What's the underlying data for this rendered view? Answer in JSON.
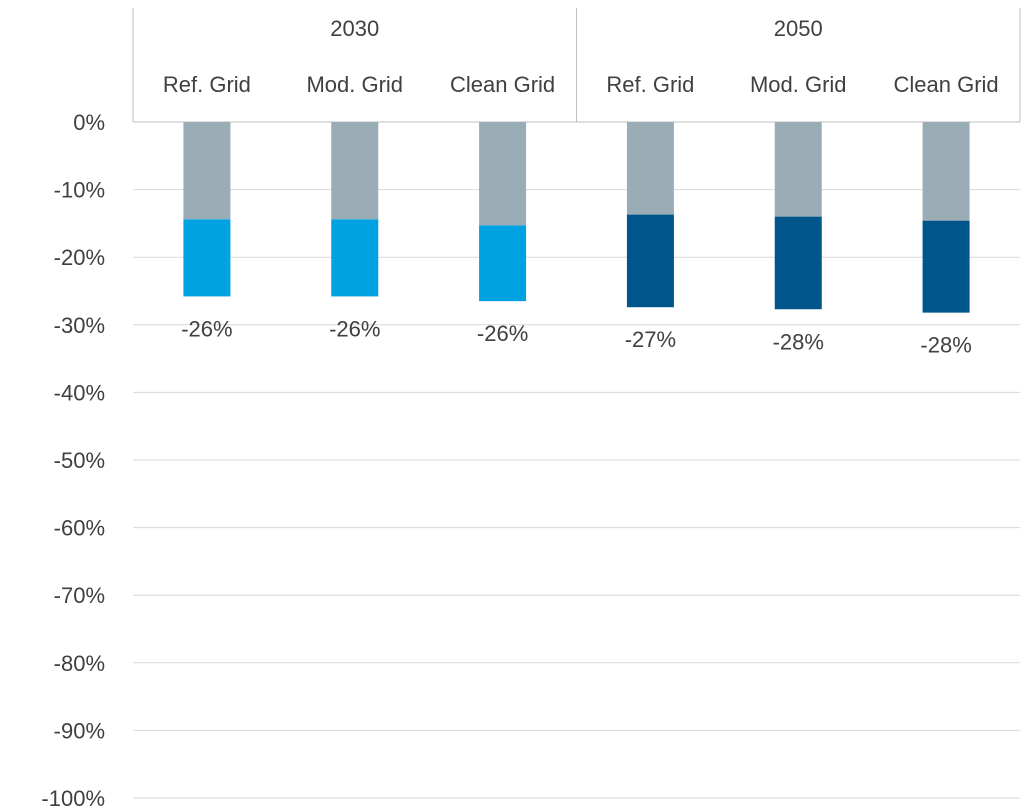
{
  "chart_data": {
    "type": "bar",
    "stacked": true,
    "title": "",
    "xlabel": "",
    "ylabel": "",
    "ylim": [
      -100,
      0
    ],
    "grid": true,
    "legend": "none",
    "y_ticks": [
      "0%",
      "-10%",
      "-20%",
      "-30%",
      "-40%",
      "-50%",
      "-60%",
      "-70%",
      "-80%",
      "-90%",
      "-100%"
    ],
    "groups": [
      {
        "label": "2030",
        "categories": [
          "Ref. Grid",
          "Mod. Grid",
          "Clean Grid"
        ]
      },
      {
        "label": "2050",
        "categories": [
          "Ref. Grid",
          "Mod. Grid",
          "Clean Grid"
        ]
      }
    ],
    "bars": [
      {
        "group": "2030",
        "category": "Ref. Grid",
        "segments": [
          -14.4,
          -11.4
        ],
        "total": -25.8,
        "total_label": "-26%"
      },
      {
        "group": "2030",
        "category": "Mod. Grid",
        "segments": [
          -14.4,
          -11.4
        ],
        "total": -25.8,
        "total_label": "-26%"
      },
      {
        "group": "2030",
        "category": "Clean Grid",
        "segments": [
          -15.3,
          -11.2
        ],
        "total": -26.5,
        "total_label": "-26%"
      },
      {
        "group": "2050",
        "category": "Ref. Grid",
        "segments": [
          -13.7,
          -13.7
        ],
        "total": -27.4,
        "total_label": "-27%"
      },
      {
        "group": "2050",
        "category": "Mod. Grid",
        "segments": [
          -14.0,
          -13.7
        ],
        "total": -27.7,
        "total_label": "-28%"
      },
      {
        "group": "2050",
        "category": "Clean Grid",
        "segments": [
          -14.6,
          -13.6
        ],
        "total": -28.2,
        "total_label": "-28%"
      }
    ],
    "colors": {
      "segment_top": "#9aadb7",
      "segment_bottom_2030": "#00a2e1",
      "segment_bottom_2050": "#00558b",
      "grid": "#d9d9d9",
      "axis": "#bfbfbf",
      "text": "#404040"
    }
  }
}
